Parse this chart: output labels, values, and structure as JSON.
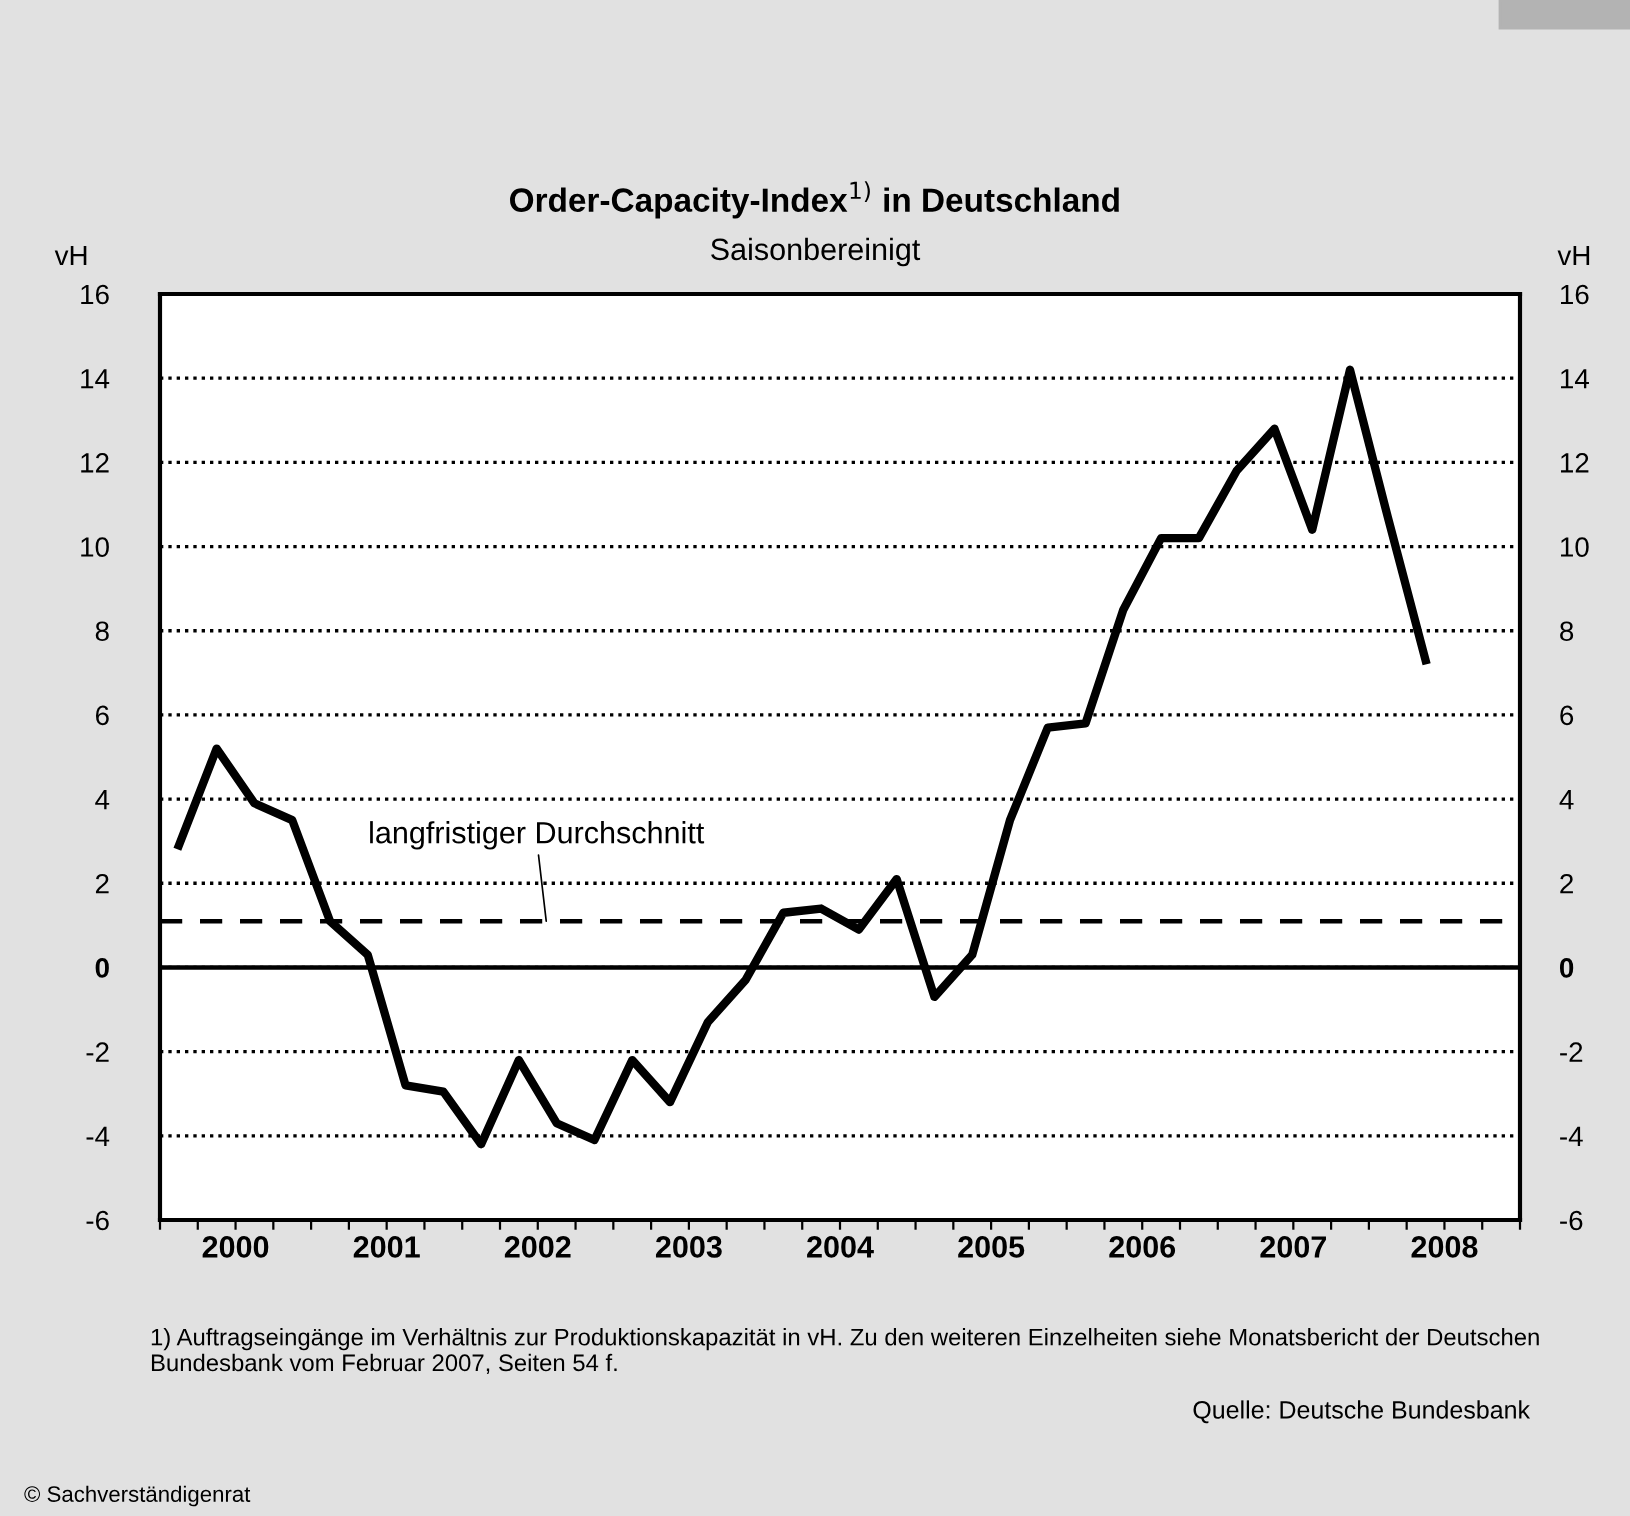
{
  "chart_data": {
    "type": "line",
    "title": "Order-Capacity-Index$^{1)}$ in Deutschland",
    "subtitle": "Saisonbereinigt",
    "ylabel": "vH",
    "y2label": "vH",
    "x": [
      2000.125,
      2000.375,
      2000.625,
      2000.875,
      2001.125,
      2001.375,
      2001.625,
      2001.875,
      2002.125,
      2002.375,
      2002.625,
      2002.875,
      2003.125,
      2003.375,
      2003.625,
      2003.875,
      2004.125,
      2004.375,
      2004.625,
      2004.875,
      2005.125,
      2005.375,
      2005.625,
      2005.875,
      2006.125,
      2006.375,
      2006.625,
      2006.875,
      2007.125,
      2007.375,
      2007.625,
      2007.875,
      2008.125,
      2008.375
    ],
    "series": [
      {
        "color": "#000000",
        "values": [
          2.9,
          5.2,
          3.9,
          3.5,
          1.1,
          0.3,
          -2.8,
          -2.95,
          -4.2,
          -2.2,
          -3.7,
          -4.1,
          -2.2,
          -3.2,
          -1.3,
          -0.3,
          1.3,
          1.4,
          0.9,
          2.1,
          -0.7,
          0.3,
          3.5,
          5.7,
          5.8,
          8.5,
          10.2,
          10.2,
          11.8,
          12.8,
          10.4,
          14.2,
          10.7,
          7.3
        ]
      }
    ],
    "xlim": [
      2000,
      2009
    ],
    "xticks": [
      {
        "value": 2000,
        "label": null
      },
      {
        "value": 2000.25,
        "label": null
      },
      {
        "value": 2000.5,
        "label": "2000"
      },
      {
        "value": 2000.75,
        "label": null
      },
      {
        "value": 2001,
        "label": null
      },
      {
        "value": 2001.25,
        "label": null
      },
      {
        "value": 2001.5,
        "label": "2001"
      },
      {
        "value": 2001.75,
        "label": null
      },
      {
        "value": 2002,
        "label": null
      },
      {
        "value": 2002.25,
        "label": null
      },
      {
        "value": 2002.5,
        "label": "2002"
      },
      {
        "value": 2002.75,
        "label": null
      },
      {
        "value": 2003,
        "label": null
      },
      {
        "value": 2003.25,
        "label": null
      },
      {
        "value": 2003.5,
        "label": "2003"
      },
      {
        "value": 2003.75,
        "label": null
      },
      {
        "value": 2004,
        "label": null
      },
      {
        "value": 2004.25,
        "label": null
      },
      {
        "value": 2004.5,
        "label": "2004"
      },
      {
        "value": 2004.75,
        "label": null
      },
      {
        "value": 2005,
        "label": null
      },
      {
        "value": 2005.25,
        "label": null
      },
      {
        "value": 2005.5,
        "label": "2005"
      },
      {
        "value": 2005.75,
        "label": null
      },
      {
        "value": 2006,
        "label": null
      },
      {
        "value": 2006.25,
        "label": null
      },
      {
        "value": 2006.5,
        "label": "2006"
      },
      {
        "value": 2006.75,
        "label": null
      },
      {
        "value": 2007,
        "label": null
      },
      {
        "value": 2007.25,
        "label": null
      },
      {
        "value": 2007.5,
        "label": "2007"
      },
      {
        "value": 2007.75,
        "label": null
      },
      {
        "value": 2008,
        "label": null
      },
      {
        "value": 2008.25,
        "label": null
      },
      {
        "value": 2008.5,
        "label": "2008"
      },
      {
        "value": 2008.75,
        "label": null
      },
      {
        "value": 2009,
        "label": null
      }
    ],
    "ylim": [
      -6,
      16
    ],
    "yticks": [
      -6,
      -4,
      -2,
      0,
      2,
      4,
      6,
      8,
      10,
      12,
      14,
      16
    ],
    "y2lim": [
      -6,
      16
    ],
    "y2ticks": [
      -6,
      -4,
      -2,
      0,
      2,
      4,
      6,
      8,
      10,
      12,
      14,
      16
    ],
    "grid": "y",
    "line_style": "solid",
    "marker": "none",
    "ref_lines": [
      {
        "axis": "y",
        "value": 0,
        "line_style": "solid",
        "color": "#000000"
      },
      {
        "axis": "y",
        "value": 1.1,
        "label": "langfristiger Durchschnitt",
        "line_style": "dashed",
        "color": "#000000"
      }
    ],
    "annotations": [
      "1) Auftragseingänge im Verhältnis zur Produktionskapazität in vH. Zu den weiteren Einzelheiten siehe Monatsbericht der Deutschen Bundesbank vom Februar 2007, Seiten 54 f.",
      "Quelle: Deutsche Bundesbank",
      "© Sachverständigenrat"
    ]
  }
}
